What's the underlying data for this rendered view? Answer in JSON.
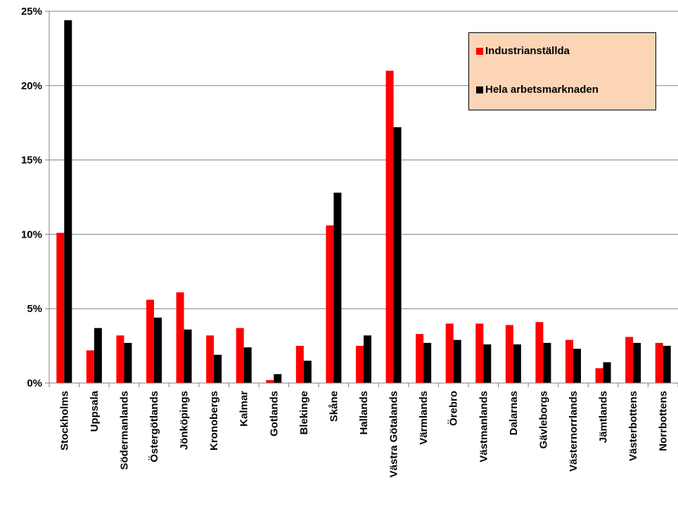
{
  "chart_data": {
    "type": "bar",
    "categories": [
      "Stockholms",
      "Uppsala",
      "Södermanlands",
      "Östergötlands",
      "Jönköpings",
      "Kronobergs",
      "Kalmar",
      "Gotlands",
      "Blekinge",
      "Skåne",
      "Hallands",
      "Västra Götalands",
      "Värmlands",
      "Örebro",
      "Västmanlands",
      "Dalarnas",
      "Gävleborgs",
      "Västernorrlands",
      "Jämtlands",
      "Västerbottens",
      "Norrbottens"
    ],
    "series": [
      {
        "name": "Industrianställda",
        "color": "#ff0000",
        "values": [
          10.1,
          2.2,
          3.2,
          5.6,
          6.1,
          3.2,
          3.7,
          0.2,
          2.5,
          10.6,
          2.5,
          21.0,
          3.3,
          4.0,
          4.0,
          3.9,
          4.1,
          2.9,
          1.0,
          3.1,
          2.7
        ]
      },
      {
        "name": "Hela arbetsmarknaden",
        "color": "#000000",
        "values": [
          24.4,
          3.7,
          2.7,
          4.4,
          3.6,
          1.9,
          2.4,
          0.6,
          1.5,
          12.8,
          3.2,
          17.2,
          2.7,
          2.9,
          2.6,
          2.6,
          2.7,
          2.3,
          1.4,
          2.7,
          2.5
        ]
      }
    ],
    "yticks": [
      "0%",
      "5%",
      "10%",
      "15%",
      "20%",
      "25%"
    ],
    "ylim": [
      0,
      25
    ],
    "grid": true,
    "legend_position": "top-right",
    "legend_bg": "#fbd5b5"
  }
}
